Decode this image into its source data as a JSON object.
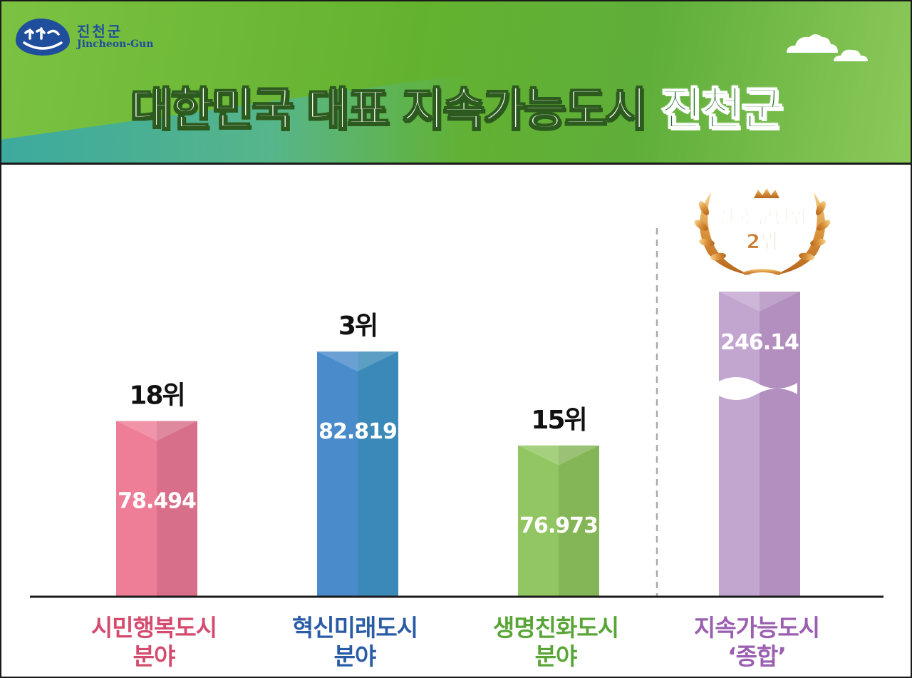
{
  "header": {
    "logo_kor": "진천군",
    "logo_eng": "Jincheon-Gun",
    "title_main": "대한민국 대표 지속가능도시",
    "title_highlight": "진천군"
  },
  "badge": {
    "line1": "전국 군단위",
    "line2": "2위"
  },
  "chart_data": {
    "type": "bar",
    "categories": [
      {
        "line1": "시민행복도시",
        "line2": "분야",
        "color": "#d44b6e"
      },
      {
        "line1": "혁신미래도시",
        "line2": "분야",
        "color": "#2a5ca6"
      },
      {
        "line1": "생명친화도시",
        "line2": "분야",
        "color": "#5aa537"
      },
      {
        "line1": "지속가능도시",
        "line2": "‘종합’",
        "color": "#9a5fb0"
      }
    ],
    "values": [
      78.494,
      82.819,
      76.973,
      246.14
    ],
    "value_labels": [
      "78.494",
      "82.819",
      "76.973",
      "246.14"
    ],
    "ranks": [
      "18위",
      "3위",
      "15위",
      ""
    ],
    "bar_colors": [
      {
        "light": "#ee7d97",
        "dark": "#d86f8a"
      },
      {
        "light": "#4a8ccb",
        "dark": "#3a89b8"
      },
      {
        "light": "#92c662",
        "dark": "#84b556"
      },
      {
        "light": "#c3a6d0",
        "dark": "#b28fbf"
      }
    ],
    "broken_axis_series_index": 3,
    "ylim": [
      0,
      100
    ]
  }
}
